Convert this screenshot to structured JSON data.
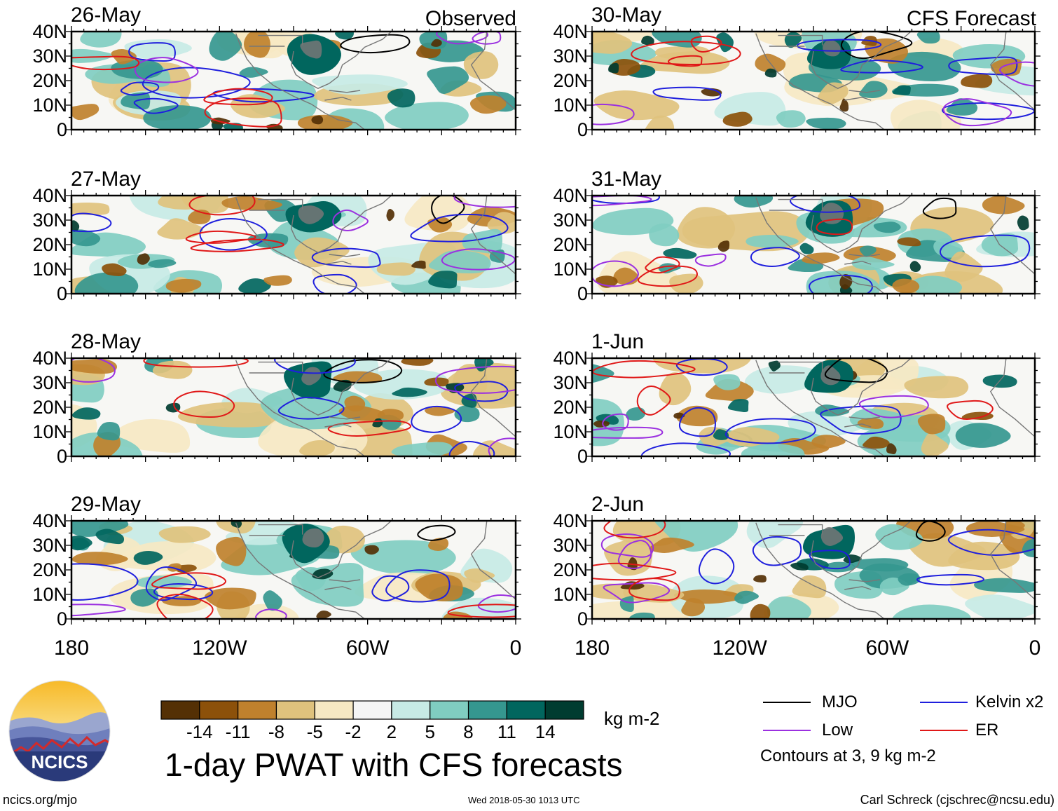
{
  "header": {
    "observed_label": "Observed",
    "forecast_label": "CFS Forecast"
  },
  "chart_data": {
    "type": "heatmap",
    "title": "1-day PWAT with CFS forecasts",
    "variable": "Precipitable water anomaly",
    "units": "kg m-2",
    "lat_ticks": [
      "40N",
      "30N",
      "20N",
      "10N",
      "0"
    ],
    "lon_ticks": [
      "180",
      "120W",
      "60W",
      "0"
    ],
    "lat_range": [
      0,
      40
    ],
    "lon_range": [
      -180,
      0
    ],
    "panels": [
      {
        "date": "26-May",
        "kind": "Observed"
      },
      {
        "date": "27-May",
        "kind": "Observed"
      },
      {
        "date": "28-May",
        "kind": "Observed"
      },
      {
        "date": "29-May",
        "kind": "Observed"
      },
      {
        "date": "30-May",
        "kind": "CFS Forecast"
      },
      {
        "date": "31-May",
        "kind": "CFS Forecast"
      },
      {
        "date": "1-Jun",
        "kind": "CFS Forecast"
      },
      {
        "date": "2-Jun",
        "kind": "CFS Forecast"
      }
    ],
    "colorbar": {
      "ticks": [
        "-14",
        "-11",
        "-8",
        "-5",
        "-2",
        "2",
        "5",
        "8",
        "11",
        "14"
      ],
      "colors": [
        "#543005",
        "#8c510a",
        "#bf812d",
        "#dfc27d",
        "#f6e8c3",
        "#f5f5f5",
        "#c7eae5",
        "#80cdc1",
        "#35978f",
        "#01665e",
        "#003c30"
      ],
      "units_label": "kg m-2"
    },
    "legend": [
      {
        "label": "MJO",
        "color": "#000000"
      },
      {
        "label": "Kelvin x2",
        "color": "#1f1fdd"
      },
      {
        "label": "Low",
        "color": "#9b30e0"
      },
      {
        "label": "ER",
        "color": "#e01818"
      }
    ],
    "contour_note": "Contours at 3, 9 kg m-2"
  },
  "footer": {
    "logo_text": "NCICS",
    "site": "ncics.org/mjo",
    "timestamp": "Wed 2018-05-30 1013 UTC",
    "credit": "Carl Schreck (cjschrec@ncsu.edu)"
  }
}
